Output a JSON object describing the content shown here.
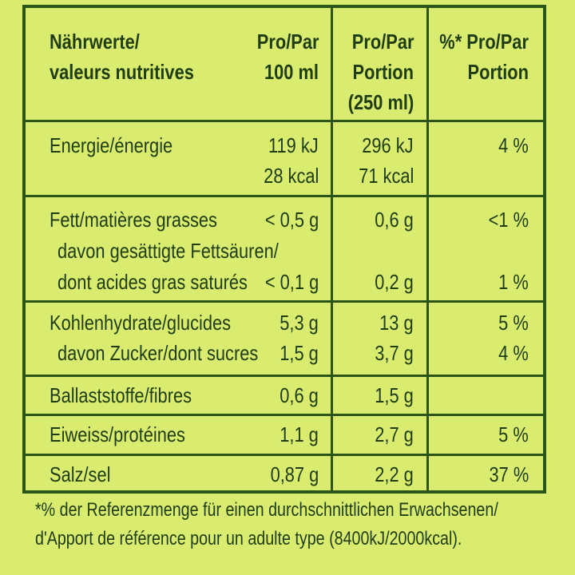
{
  "header": {
    "col1": [
      "Nährwerte/",
      "valeurs nutritives"
    ],
    "col2": [
      "Pro/Par",
      "100 ml"
    ],
    "col3": [
      "Pro/Par",
      "Portion",
      "(250 ml)"
    ],
    "col4": [
      "%* Pro/Par",
      "Portion"
    ]
  },
  "rows": [
    {
      "label": "Energie/énergie",
      "per100": "119 kJ",
      "portion": "296 kJ",
      "pct": "4 %"
    },
    {
      "label": "",
      "per100": "28 kcal",
      "portion": "71 kcal",
      "pct": ""
    },
    {
      "label": "Fett/matières grasses",
      "per100": "< 0,5 g",
      "portion": "0,6 g",
      "pct": "<1 %"
    },
    {
      "label": "davon gesättigte Fettsäuren/",
      "per100": "",
      "portion": "",
      "pct": ""
    },
    {
      "label": "dont acides gras saturés",
      "per100": "< 0,1 g",
      "portion": "0,2 g",
      "pct": "1 %"
    },
    {
      "label": "Kohlenhydrate/glucides",
      "per100": "5,3 g",
      "portion": "13 g",
      "pct": "5 %"
    },
    {
      "label": "davon Zucker/dont sucres",
      "per100": "1,5 g",
      "portion": "3,7 g",
      "pct": "4 %"
    },
    {
      "label": "Ballaststoffe/fibres",
      "per100": "0,6 g",
      "portion": "1,5 g",
      "pct": ""
    },
    {
      "label": "Eiweiss/protéines",
      "per100": "1,1 g",
      "portion": "2,7 g",
      "pct": "5 %"
    },
    {
      "label": "Salz/sel",
      "per100": "0,87 g",
      "portion": "2,2 g",
      "pct": "37 %"
    }
  ],
  "footnote": [
    "*% der Referenzmenge für einen durchschnittlichen Erwachsenen/",
    "d'Apport de référence pour un adulte type (8400kJ/2000kcal)."
  ],
  "colors": {
    "background": "#d9ec70",
    "ink": "#1f3d10",
    "rule": "#2a5418"
  }
}
